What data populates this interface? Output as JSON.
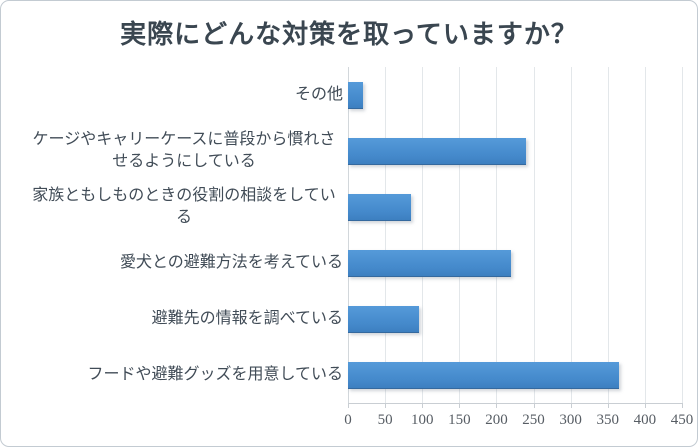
{
  "chart_data": {
    "type": "bar",
    "orientation": "horizontal",
    "title": "実際にどんな対策を取っていますか？",
    "categories": [
      "その他",
      "ケージやキャリーケースに普段から慣れさせるようにしている",
      "家族ともしものときの役割の相談をしている",
      "愛犬との避難方法を考えている",
      "避難先の情報を調べている",
      "フードや避難グッズを用意している"
    ],
    "values": [
      20,
      240,
      85,
      220,
      95,
      365
    ],
    "xlabel": "",
    "ylabel": "",
    "xlim": [
      0,
      450
    ],
    "x_ticks": [
      0,
      50,
      100,
      150,
      200,
      250,
      300,
      350,
      400,
      450
    ],
    "grid": "vertical-gridlines-on",
    "legend": "none",
    "colors": {
      "bar_gradient_top": "#559ad9",
      "bar_gradient_bottom": "#3d7fc0",
      "title_text": "#3a4650",
      "category_text": "#414c57",
      "tick_text": "#575d64",
      "gridline": "#e3e7ea",
      "axis_line": "#c9ced3",
      "frame_border": "#c3cbd2",
      "background": "#ffffff"
    }
  }
}
